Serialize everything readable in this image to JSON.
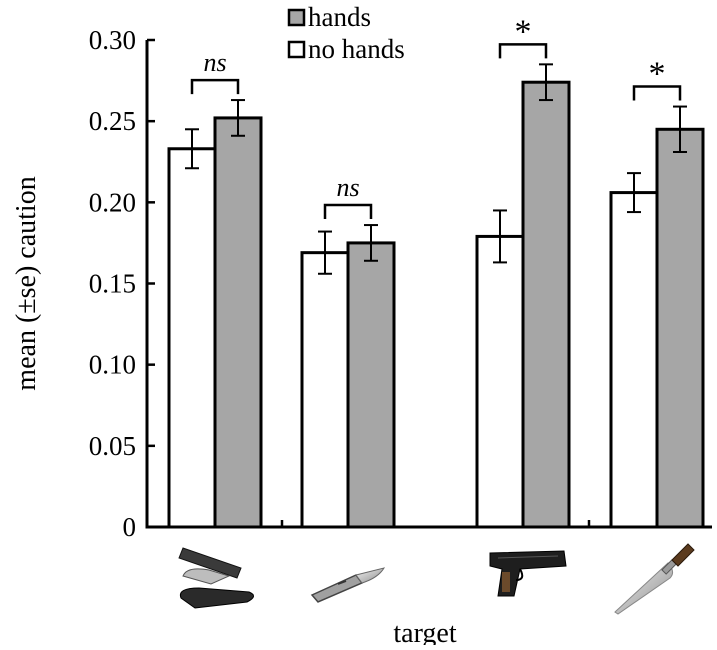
{
  "chart_data": {
    "type": "bar",
    "xlabel": "target",
    "ylabel": "mean (±se) caution",
    "ylim": [
      0,
      0.3
    ],
    "yticks": [
      0,
      0.05,
      0.1,
      0.15,
      0.2,
      0.25,
      0.3
    ],
    "ytick_labels": [
      "0",
      "0.05",
      "0.10",
      "0.15",
      "0.20",
      "0.25",
      "0.30"
    ],
    "categories": [
      "stapler",
      "scalpel",
      "gun",
      "knife"
    ],
    "category_icons": [
      "stapler-icon",
      "scalpel-icon",
      "gun-icon",
      "knife-icon"
    ],
    "series": [
      {
        "name": "no hands",
        "color": "#ffffff",
        "values": [
          0.233,
          0.169,
          0.179,
          0.206
        ],
        "errors": [
          0.012,
          0.013,
          0.016,
          0.012
        ]
      },
      {
        "name": "hands",
        "color": "#a6a6a6",
        "values": [
          0.252,
          0.175,
          0.274,
          0.245
        ],
        "errors": [
          0.011,
          0.011,
          0.011,
          0.014
        ]
      }
    ],
    "legend": {
      "position": "top-center",
      "order": [
        "hands",
        "no hands"
      ]
    },
    "significance": [
      {
        "category": "stapler",
        "label": "ns"
      },
      {
        "category": "scalpel",
        "label": "ns"
      },
      {
        "category": "gun",
        "label": "*"
      },
      {
        "category": "knife",
        "label": "*"
      }
    ],
    "grid": false
  }
}
